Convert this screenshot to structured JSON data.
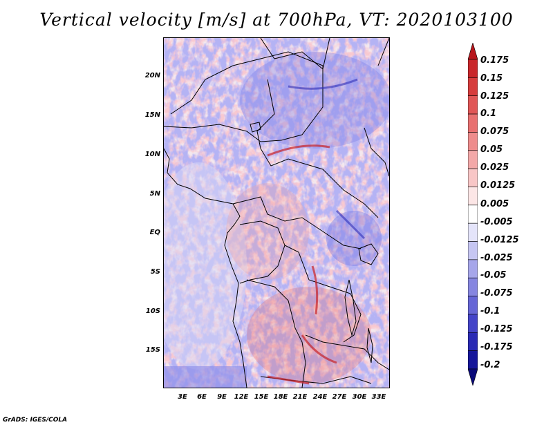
{
  "title": "Vertical velocity [m/s] at 700hPa, VT: 2020103100",
  "footer": "GrADS: IGES/COLA",
  "lat_labels": [
    "20N",
    "15N",
    "10N",
    "5N",
    "EQ",
    "5S",
    "10S",
    "15S"
  ],
  "lon_labels": [
    "3E",
    "6E",
    "9E",
    "12E",
    "15E",
    "18E",
    "21E",
    "24E",
    "27E",
    "30E",
    "33E"
  ],
  "colorbar": {
    "labels": [
      "0.175",
      "0.15",
      "0.125",
      "0.1",
      "0.075",
      "0.05",
      "0.025",
      "0.0125",
      "0.005",
      "-0.005",
      "-0.0125",
      "-0.025",
      "-0.05",
      "-0.075",
      "-0.1",
      "-0.125",
      "-0.175",
      "-0.2"
    ],
    "colors": [
      "#b8171d",
      "#c9272b",
      "#d63c3c",
      "#e05656",
      "#e87070",
      "#ee8c8c",
      "#f3a8a8",
      "#f8c6c6",
      "#fce6e6",
      "#ffffff",
      "#e4e4fa",
      "#c6c6f2",
      "#a6a6ea",
      "#8686e0",
      "#6666d6",
      "#4444c8",
      "#2a2ab4",
      "#16169a",
      "#0a0a7a"
    ]
  },
  "map": {
    "lat_range": [
      -19,
      24.5
    ],
    "lon_range": [
      0,
      34
    ],
    "description_free": true
  }
}
